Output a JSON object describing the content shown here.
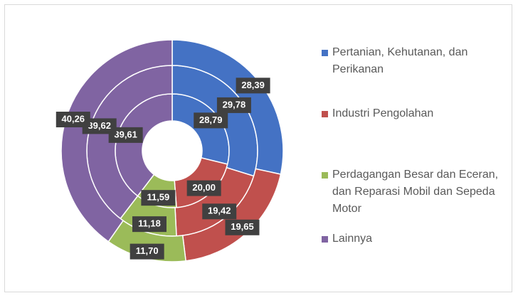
{
  "chart_data": {
    "type": "donut",
    "categories": [
      "Pertanian, Kehutanan, dan Perikanan",
      "Industri Pengolahan",
      "Perdagangan Besar dan Eceran, dan Reparasi Mobil dan Sepeda Motor",
      "Lainnya"
    ],
    "colors": [
      "#4472c4",
      "#c0504d",
      "#9bbb59",
      "#8064a2"
    ],
    "series": [
      {
        "values": [
          28.79,
          20.0,
          11.59,
          39.61
        ],
        "value_labels": [
          "28,79",
          "20,00",
          "11,59",
          "39,61"
        ]
      },
      {
        "values": [
          29.78,
          19.42,
          11.18,
          39.62
        ],
        "value_labels": [
          "29,78",
          "19,42",
          "11,18",
          "39,62"
        ]
      },
      {
        "values": [
          28.39,
          19.65,
          11.7,
          40.26
        ],
        "value_labels": [
          "28,39",
          "19,65",
          "11,70",
          "40,26"
        ]
      }
    ],
    "legend": "right"
  }
}
